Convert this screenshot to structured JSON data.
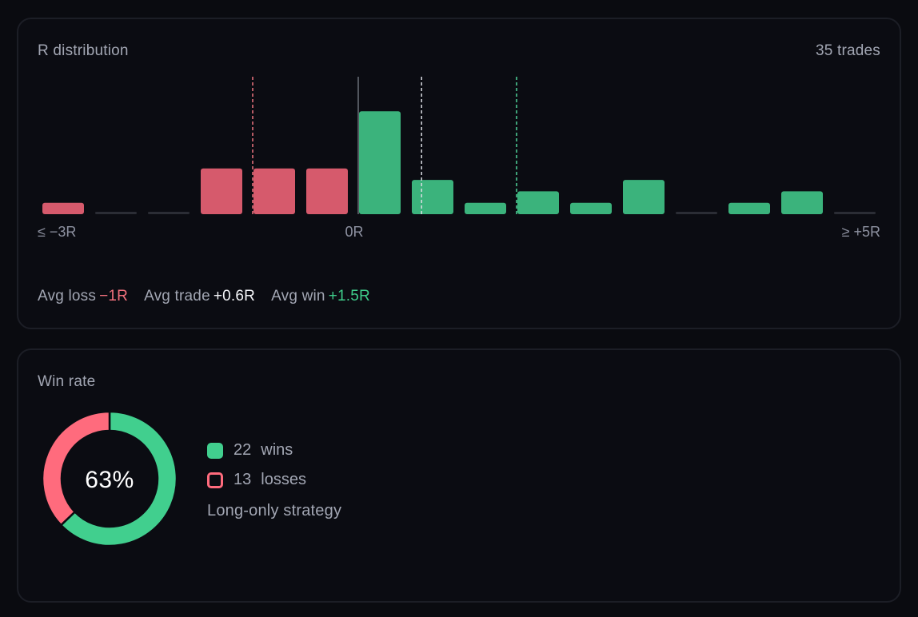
{
  "r_card": {
    "title": "R distribution",
    "trade_count": "35 trades",
    "stats": {
      "avg_loss_label": "Avg loss",
      "avg_loss_value": "−1R",
      "avg_trade_label": "Avg trade",
      "avg_trade_value": "+0.6R",
      "avg_win_label": "Avg win",
      "avg_win_value": "+1.5R"
    }
  },
  "win_card": {
    "title": "Win rate",
    "percent_label": "63%",
    "wins_count": "22",
    "wins_label": "wins",
    "losses_count": "13",
    "losses_label": "losses",
    "strategy": "Long-only strategy"
  },
  "colors": {
    "loss": "#d65a6c",
    "win": "#3bb37c",
    "empty": "#2b2d35",
    "loss_line": "#f07480",
    "avg_line": "#d9dbe2",
    "win_line": "#4fd49a",
    "zero_line": "#6b6e78",
    "donut_win": "#41cf8e",
    "donut_loss": "#ff6b7d"
  },
  "chart_data": [
    {
      "type": "bar",
      "title": "R distribution",
      "xlabel": "",
      "ylabel": "",
      "x_range": [
        -3,
        5
      ],
      "tick_labels": [
        "≤ −3R",
        "0R",
        "≥ +5R"
      ],
      "bins": [
        {
          "from": -3.0,
          "to": -2.5,
          "count": 1,
          "outcome": "loss"
        },
        {
          "from": -2.5,
          "to": -2.0,
          "count": 0,
          "outcome": "none"
        },
        {
          "from": -2.0,
          "to": -1.5,
          "count": 0,
          "outcome": "none"
        },
        {
          "from": -1.5,
          "to": -1.0,
          "count": 4,
          "outcome": "loss"
        },
        {
          "from": -1.0,
          "to": -0.5,
          "count": 4,
          "outcome": "loss"
        },
        {
          "from": -0.5,
          "to": 0.0,
          "count": 4,
          "outcome": "loss"
        },
        {
          "from": 0.0,
          "to": 0.5,
          "count": 9,
          "outcome": "win"
        },
        {
          "from": 0.5,
          "to": 1.0,
          "count": 3,
          "outcome": "win"
        },
        {
          "from": 1.0,
          "to": 1.5,
          "count": 1,
          "outcome": "win"
        },
        {
          "from": 1.5,
          "to": 2.0,
          "count": 2,
          "outcome": "win"
        },
        {
          "from": 2.0,
          "to": 2.5,
          "count": 1,
          "outcome": "win"
        },
        {
          "from": 2.5,
          "to": 3.0,
          "count": 3,
          "outcome": "win"
        },
        {
          "from": 3.0,
          "to": 3.5,
          "count": 0,
          "outcome": "none"
        },
        {
          "from": 3.5,
          "to": 4.0,
          "count": 1,
          "outcome": "win"
        },
        {
          "from": 4.0,
          "to": 4.5,
          "count": 2,
          "outcome": "win"
        },
        {
          "from": 4.5,
          "to": 5.0,
          "count": 0,
          "outcome": "none"
        }
      ],
      "ylim": [
        0,
        9
      ],
      "reference_lines": [
        {
          "value": -1.0,
          "kind": "avg_loss"
        },
        {
          "value": 0.0,
          "kind": "zero"
        },
        {
          "value": 0.6,
          "kind": "avg_trade"
        },
        {
          "value": 1.5,
          "kind": "avg_win"
        }
      ],
      "grid": false
    },
    {
      "type": "pie",
      "title": "Win rate",
      "center_label": "63%",
      "slices": [
        {
          "name": "wins",
          "value": 22
        },
        {
          "name": "losses",
          "value": 13
        }
      ]
    }
  ]
}
